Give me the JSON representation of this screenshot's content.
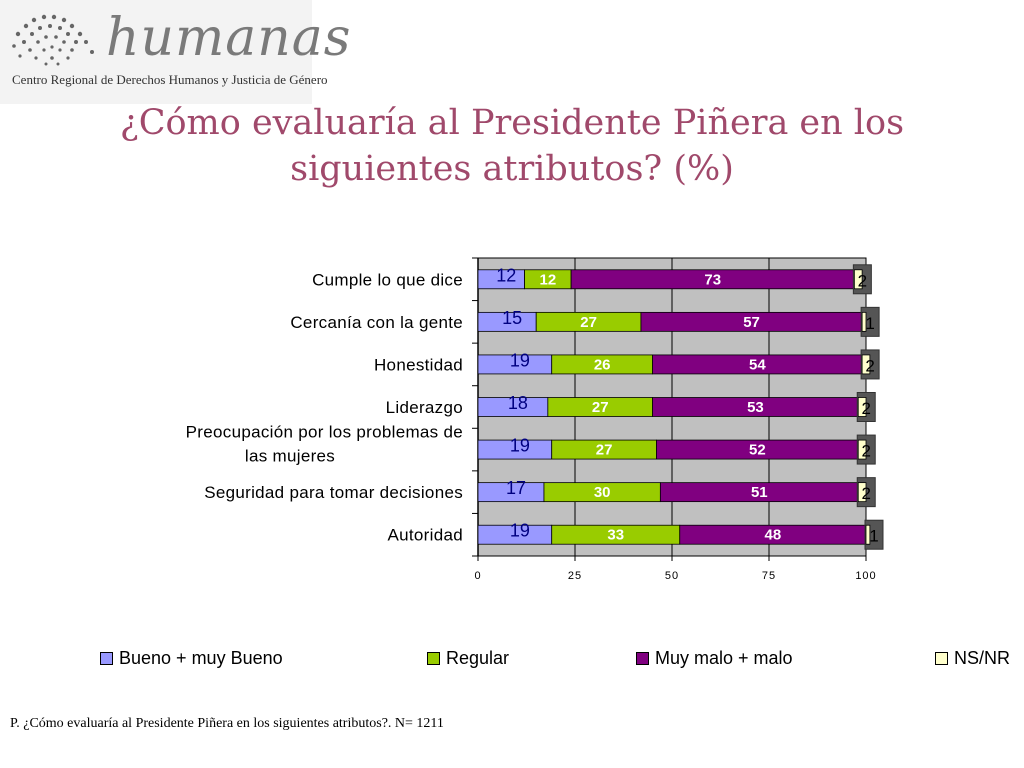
{
  "logo": {
    "name": "humanas",
    "subtitle": "Centro Regional de Derechos Humanos y Justicia de Género"
  },
  "title": "¿Cómo evaluaría al Presidente Piñera en los siguientes atributos? (%)",
  "footnote": "P. ¿Cómo evaluaría al Presidente Piñera en los siguientes atributos?. N= 1211",
  "chart_data": {
    "type": "bar",
    "orientation": "horizontal",
    "stacked": true,
    "categories": [
      [
        "Cumple lo que dice"
      ],
      [
        "Cercanía con la gente"
      ],
      [
        "Honestidad"
      ],
      [
        "Liderazgo"
      ],
      [
        "Preocupación por los problemas de",
        "las mujeres"
      ],
      [
        "Seguridad para tomar decisiones"
      ],
      [
        "Autoridad"
      ]
    ],
    "series": [
      {
        "name": "Bueno + muy Bueno",
        "values": [
          12,
          15,
          19,
          18,
          19,
          17,
          19
        ],
        "color": "#9999ff"
      },
      {
        "name": "Regular",
        "values": [
          12,
          27,
          26,
          27,
          27,
          30,
          33
        ],
        "color": "#99cc00"
      },
      {
        "name": "Muy malo + malo",
        "values": [
          73,
          57,
          54,
          53,
          52,
          51,
          48
        ],
        "color": "#800080"
      },
      {
        "name": "NS/NR",
        "values": [
          2,
          1,
          2,
          2,
          2,
          2,
          1
        ],
        "color": "#ffffcc"
      }
    ],
    "xlim": [
      0,
      100
    ],
    "xticks": [
      0,
      25,
      50,
      75,
      100
    ],
    "grid": true,
    "plot_background": "#c0c0c0",
    "legend_position": "bottom"
  }
}
